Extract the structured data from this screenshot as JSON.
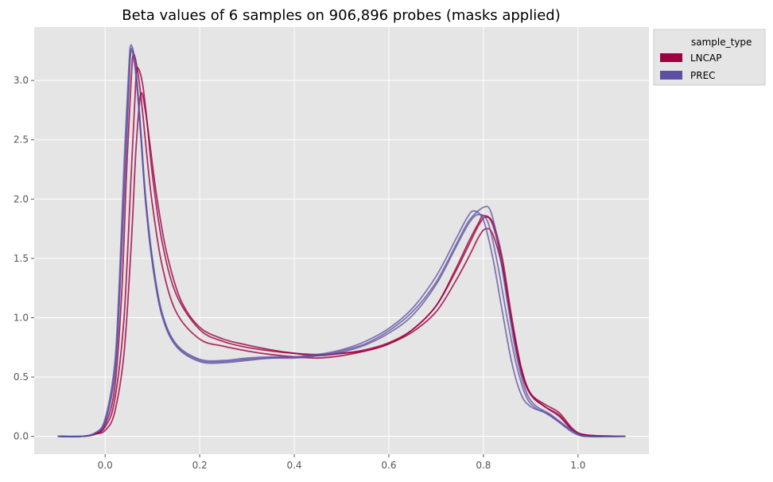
{
  "chart_data": {
    "type": "line",
    "title": "Beta values of 6 samples on 906,896 probes (masks applied)",
    "xlabel": "",
    "ylabel": "",
    "xlim": [
      -0.15,
      1.15
    ],
    "ylim": [
      -0.15,
      3.45
    ],
    "x_ticks": [
      0.0,
      0.2,
      0.4,
      0.6,
      0.8,
      1.0
    ],
    "x_tick_labels": [
      "0.0",
      "0.2",
      "0.4",
      "0.6",
      "0.8",
      "1.0"
    ],
    "y_ticks": [
      0.0,
      0.5,
      1.0,
      1.5,
      2.0,
      2.5,
      3.0
    ],
    "y_tick_labels": [
      "0.0",
      "0.5",
      "1.0",
      "1.5",
      "2.0",
      "2.5",
      "3.0"
    ],
    "grid": true,
    "legend": {
      "placement": "outside-top-right",
      "title": "sample_type",
      "entries": [
        {
          "label": "LNCAP",
          "color": "#9e0142"
        },
        {
          "label": "PREC",
          "color": "#5e4fa2"
        }
      ]
    },
    "series": [
      {
        "group": "LNCAP",
        "color": "#9e0142",
        "points": [
          [
            -0.1,
            0.0
          ],
          [
            -0.05,
            0.0
          ],
          [
            -0.02,
            0.02
          ],
          [
            0.0,
            0.08
          ],
          [
            0.02,
            0.3
          ],
          [
            0.04,
            1.0
          ],
          [
            0.055,
            2.2
          ],
          [
            0.065,
            3.0
          ],
          [
            0.07,
            3.1
          ],
          [
            0.08,
            2.95
          ],
          [
            0.09,
            2.6
          ],
          [
            0.1,
            2.2
          ],
          [
            0.12,
            1.65
          ],
          [
            0.15,
            1.2
          ],
          [
            0.2,
            0.9
          ],
          [
            0.25,
            0.8
          ],
          [
            0.3,
            0.75
          ],
          [
            0.35,
            0.72
          ],
          [
            0.4,
            0.7
          ],
          [
            0.45,
            0.69
          ],
          [
            0.5,
            0.7
          ],
          [
            0.55,
            0.73
          ],
          [
            0.6,
            0.79
          ],
          [
            0.65,
            0.9
          ],
          [
            0.7,
            1.1
          ],
          [
            0.74,
            1.38
          ],
          [
            0.77,
            1.62
          ],
          [
            0.79,
            1.78
          ],
          [
            0.805,
            1.85
          ],
          [
            0.82,
            1.78
          ],
          [
            0.84,
            1.45
          ],
          [
            0.86,
            0.95
          ],
          [
            0.88,
            0.55
          ],
          [
            0.9,
            0.35
          ],
          [
            0.93,
            0.25
          ],
          [
            0.96,
            0.18
          ],
          [
            0.99,
            0.05
          ],
          [
            1.02,
            0.01
          ],
          [
            1.1,
            0.0
          ]
        ]
      },
      {
        "group": "LNCAP",
        "color": "#9e0142",
        "points": [
          [
            -0.1,
            0.0
          ],
          [
            -0.05,
            0.0
          ],
          [
            -0.02,
            0.02
          ],
          [
            0.0,
            0.05
          ],
          [
            0.02,
            0.2
          ],
          [
            0.04,
            0.7
          ],
          [
            0.055,
            1.6
          ],
          [
            0.065,
            2.4
          ],
          [
            0.075,
            2.88
          ],
          [
            0.085,
            2.75
          ],
          [
            0.095,
            2.45
          ],
          [
            0.11,
            2.0
          ],
          [
            0.13,
            1.55
          ],
          [
            0.16,
            1.15
          ],
          [
            0.2,
            0.92
          ],
          [
            0.25,
            0.82
          ],
          [
            0.3,
            0.77
          ],
          [
            0.35,
            0.73
          ],
          [
            0.4,
            0.7
          ],
          [
            0.45,
            0.68
          ],
          [
            0.5,
            0.7
          ],
          [
            0.55,
            0.72
          ],
          [
            0.6,
            0.78
          ],
          [
            0.65,
            0.88
          ],
          [
            0.7,
            1.05
          ],
          [
            0.74,
            1.3
          ],
          [
            0.77,
            1.52
          ],
          [
            0.79,
            1.68
          ],
          [
            0.805,
            1.75
          ],
          [
            0.82,
            1.7
          ],
          [
            0.84,
            1.42
          ],
          [
            0.86,
            0.95
          ],
          [
            0.88,
            0.56
          ],
          [
            0.9,
            0.36
          ],
          [
            0.93,
            0.27
          ],
          [
            0.96,
            0.2
          ],
          [
            0.99,
            0.06
          ],
          [
            1.02,
            0.01
          ],
          [
            1.1,
            0.0
          ]
        ]
      },
      {
        "group": "LNCAP",
        "color": "#9e0142",
        "points": [
          [
            -0.1,
            0.0
          ],
          [
            -0.05,
            0.0
          ],
          [
            -0.02,
            0.02
          ],
          [
            0.0,
            0.1
          ],
          [
            0.02,
            0.4
          ],
          [
            0.035,
            1.2
          ],
          [
            0.045,
            2.2
          ],
          [
            0.055,
            3.0
          ],
          [
            0.06,
            3.22
          ],
          [
            0.07,
            3.05
          ],
          [
            0.08,
            2.7
          ],
          [
            0.09,
            2.3
          ],
          [
            0.1,
            1.95
          ],
          [
            0.12,
            1.45
          ],
          [
            0.15,
            1.05
          ],
          [
            0.2,
            0.82
          ],
          [
            0.25,
            0.76
          ],
          [
            0.3,
            0.72
          ],
          [
            0.35,
            0.69
          ],
          [
            0.4,
            0.67
          ],
          [
            0.45,
            0.66
          ],
          [
            0.5,
            0.68
          ],
          [
            0.55,
            0.72
          ],
          [
            0.6,
            0.78
          ],
          [
            0.65,
            0.9
          ],
          [
            0.7,
            1.1
          ],
          [
            0.74,
            1.4
          ],
          [
            0.77,
            1.65
          ],
          [
            0.79,
            1.8
          ],
          [
            0.8,
            1.86
          ],
          [
            0.82,
            1.8
          ],
          [
            0.84,
            1.5
          ],
          [
            0.86,
            1.0
          ],
          [
            0.88,
            0.58
          ],
          [
            0.9,
            0.36
          ],
          [
            0.93,
            0.25
          ],
          [
            0.96,
            0.17
          ],
          [
            0.99,
            0.05
          ],
          [
            1.02,
            0.01
          ],
          [
            1.1,
            0.0
          ]
        ]
      },
      {
        "group": "PREC",
        "color": "#5e4fa2",
        "points": [
          [
            -0.1,
            0.0
          ],
          [
            -0.05,
            0.0
          ],
          [
            -0.02,
            0.03
          ],
          [
            0.0,
            0.15
          ],
          [
            0.02,
            0.6
          ],
          [
            0.03,
            1.3
          ],
          [
            0.04,
            2.3
          ],
          [
            0.05,
            3.1
          ],
          [
            0.055,
            3.3
          ],
          [
            0.065,
            3.1
          ],
          [
            0.075,
            2.6
          ],
          [
            0.085,
            2.05
          ],
          [
            0.1,
            1.5
          ],
          [
            0.12,
            1.05
          ],
          [
            0.15,
            0.78
          ],
          [
            0.2,
            0.65
          ],
          [
            0.25,
            0.64
          ],
          [
            0.3,
            0.66
          ],
          [
            0.35,
            0.67
          ],
          [
            0.4,
            0.67
          ],
          [
            0.45,
            0.69
          ],
          [
            0.5,
            0.73
          ],
          [
            0.55,
            0.8
          ],
          [
            0.6,
            0.91
          ],
          [
            0.65,
            1.08
          ],
          [
            0.7,
            1.35
          ],
          [
            0.74,
            1.65
          ],
          [
            0.765,
            1.84
          ],
          [
            0.78,
            1.9
          ],
          [
            0.8,
            1.82
          ],
          [
            0.82,
            1.5
          ],
          [
            0.84,
            1.05
          ],
          [
            0.86,
            0.62
          ],
          [
            0.88,
            0.35
          ],
          [
            0.9,
            0.25
          ],
          [
            0.93,
            0.2
          ],
          [
            0.96,
            0.12
          ],
          [
            0.99,
            0.03
          ],
          [
            1.02,
            0.0
          ],
          [
            1.1,
            0.0
          ]
        ]
      },
      {
        "group": "PREC",
        "color": "#5e4fa2",
        "points": [
          [
            -0.1,
            0.0
          ],
          [
            -0.05,
            0.0
          ],
          [
            -0.02,
            0.03
          ],
          [
            0.0,
            0.12
          ],
          [
            0.02,
            0.5
          ],
          [
            0.03,
            1.1
          ],
          [
            0.04,
            2.0
          ],
          [
            0.05,
            2.9
          ],
          [
            0.055,
            3.25
          ],
          [
            0.065,
            3.05
          ],
          [
            0.075,
            2.55
          ],
          [
            0.085,
            2.0
          ],
          [
            0.1,
            1.45
          ],
          [
            0.12,
            1.02
          ],
          [
            0.15,
            0.76
          ],
          [
            0.2,
            0.63
          ],
          [
            0.25,
            0.62
          ],
          [
            0.3,
            0.64
          ],
          [
            0.35,
            0.66
          ],
          [
            0.4,
            0.66
          ],
          [
            0.45,
            0.68
          ],
          [
            0.5,
            0.71
          ],
          [
            0.55,
            0.77
          ],
          [
            0.6,
            0.87
          ],
          [
            0.65,
            1.02
          ],
          [
            0.7,
            1.28
          ],
          [
            0.74,
            1.58
          ],
          [
            0.77,
            1.8
          ],
          [
            0.79,
            1.87
          ],
          [
            0.81,
            1.8
          ],
          [
            0.83,
            1.45
          ],
          [
            0.85,
            1.0
          ],
          [
            0.87,
            0.6
          ],
          [
            0.89,
            0.34
          ],
          [
            0.91,
            0.24
          ],
          [
            0.94,
            0.18
          ],
          [
            0.97,
            0.09
          ],
          [
            1.0,
            0.02
          ],
          [
            1.02,
            0.0
          ],
          [
            1.1,
            0.0
          ]
        ]
      },
      {
        "group": "PREC",
        "color": "#5e4fa2",
        "points": [
          [
            -0.1,
            0.0
          ],
          [
            -0.05,
            0.0
          ],
          [
            -0.02,
            0.03
          ],
          [
            0.0,
            0.13
          ],
          [
            0.02,
            0.55
          ],
          [
            0.03,
            1.2
          ],
          [
            0.04,
            2.1
          ],
          [
            0.05,
            3.0
          ],
          [
            0.055,
            3.27
          ],
          [
            0.065,
            3.08
          ],
          [
            0.075,
            2.58
          ],
          [
            0.085,
            2.02
          ],
          [
            0.1,
            1.47
          ],
          [
            0.12,
            1.03
          ],
          [
            0.15,
            0.77
          ],
          [
            0.2,
            0.64
          ],
          [
            0.25,
            0.63
          ],
          [
            0.3,
            0.65
          ],
          [
            0.35,
            0.66
          ],
          [
            0.4,
            0.67
          ],
          [
            0.45,
            0.68
          ],
          [
            0.5,
            0.72
          ],
          [
            0.55,
            0.78
          ],
          [
            0.6,
            0.89
          ],
          [
            0.65,
            1.05
          ],
          [
            0.7,
            1.3
          ],
          [
            0.74,
            1.6
          ],
          [
            0.77,
            1.82
          ],
          [
            0.8,
            1.93
          ],
          [
            0.815,
            1.9
          ],
          [
            0.83,
            1.65
          ],
          [
            0.85,
            1.15
          ],
          [
            0.87,
            0.68
          ],
          [
            0.89,
            0.38
          ],
          [
            0.91,
            0.26
          ],
          [
            0.94,
            0.19
          ],
          [
            0.97,
            0.1
          ],
          [
            1.0,
            0.02
          ],
          [
            1.02,
            0.0
          ],
          [
            1.1,
            0.0
          ]
        ]
      }
    ]
  }
}
